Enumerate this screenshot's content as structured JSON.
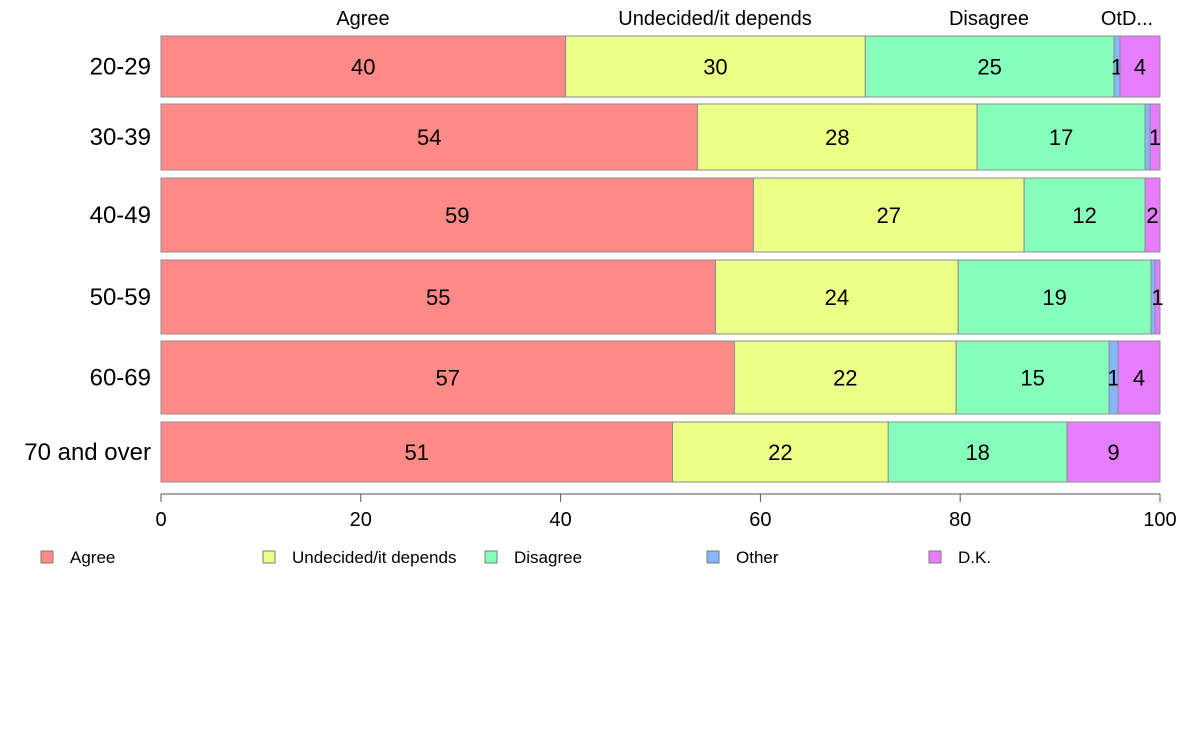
{
  "chart_data": {
    "type": "bar",
    "orientation": "horizontal",
    "stacked": true,
    "categories": [
      "20-29",
      "30-39",
      "40-49",
      "50-59",
      "60-69",
      "70 and over"
    ],
    "series": [
      {
        "name": "Agree",
        "color": "#ff8a87",
        "values": [
          40.5,
          53.7,
          59.3,
          55.5,
          57.4,
          51.2
        ],
        "labels": [
          "40",
          "54",
          "59",
          "55",
          "57",
          "51"
        ]
      },
      {
        "name": "Undecided/it depends",
        "color": "#ecff87",
        "values": [
          30.0,
          28.0,
          27.1,
          24.3,
          22.2,
          21.6
        ],
        "labels": [
          "30",
          "28",
          "27",
          "24",
          "22",
          "22"
        ]
      },
      {
        "name": "Disagree",
        "color": "#87ffbc",
        "values": [
          24.9,
          16.8,
          12.1,
          19.3,
          15.3,
          17.9
        ],
        "labels": [
          "25",
          "17",
          "12",
          "19",
          "15",
          "18"
        ]
      },
      {
        "name": "Other",
        "color": "#87b6ff",
        "values": [
          0.6,
          0.5,
          0.0,
          0.4,
          0.9,
          0.0
        ],
        "labels": [
          "1",
          "",
          "",
          "",
          "1",
          ""
        ]
      },
      {
        "name": "D.K.",
        "color": "#e67dff",
        "values": [
          4.0,
          1.0,
          1.5,
          0.5,
          4.2,
          9.3
        ],
        "labels": [
          "4",
          "1",
          "2",
          "1",
          "4",
          "9"
        ]
      }
    ],
    "top_labels": [
      "Agree",
      "Undecided/it depends",
      "Disagree",
      "OtD..."
    ],
    "x_ticks": [
      "0",
      "20",
      "40",
      "60",
      "80",
      "100"
    ],
    "xlim": [
      0,
      100
    ],
    "xlabel": "",
    "ylabel": "",
    "grid": false,
    "legend_position": "bottom"
  }
}
